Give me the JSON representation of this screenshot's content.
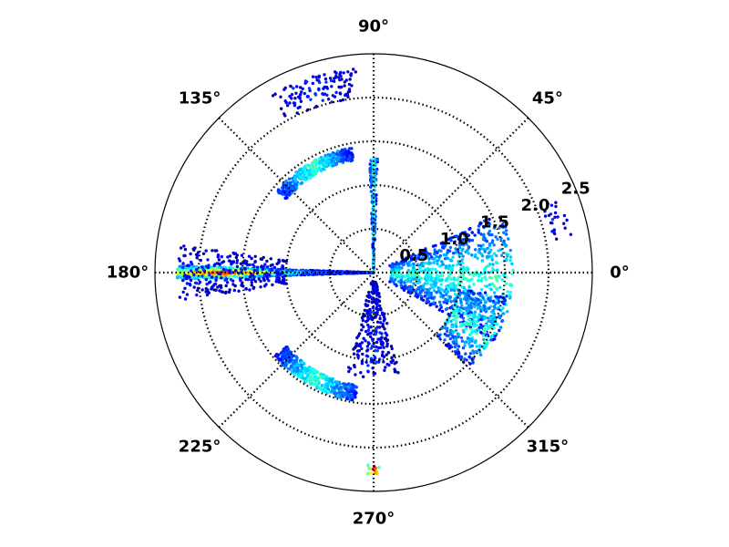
{
  "chart_data": {
    "type": "scatter",
    "projection": "polar",
    "title": "",
    "colormap": "jet (blue = low density, red = high density)",
    "theta_unit": "degrees",
    "theta_ticks": [
      0,
      45,
      90,
      135,
      180,
      225,
      270,
      315
    ],
    "theta_tick_labels": [
      "0°",
      "45°",
      "90°",
      "135°",
      "180°",
      "225°",
      "270°",
      "315°"
    ],
    "r_ticks": [
      0.5,
      1.0,
      1.5,
      2.0,
      2.5
    ],
    "r_tick_labels": [
      "0.5",
      "1.0",
      "1.5",
      "2.0",
      "2.5"
    ],
    "r_label_angle_deg": 22.5,
    "rlim": [
      0,
      2.5
    ],
    "grid": true,
    "grid_style": "dotted",
    "clusters": [
      {
        "theta_range": [
          178,
          182
        ],
        "r_range": [
          0.0,
          2.25
        ],
        "count": 1300,
        "density_peak": "high",
        "peak_r": 1.7
      },
      {
        "theta_range": [
          172,
          188
        ],
        "r_range": [
          1.0,
          2.25
        ],
        "count": 260,
        "density_peak": "low"
      },
      {
        "theta_range": [
          100,
          140
        ],
        "r_range": [
          1.3,
          1.45
        ],
        "count": 380,
        "density_peak": "medium"
      },
      {
        "theta_range": [
          220,
          262
        ],
        "r_range": [
          1.3,
          1.48
        ],
        "count": 420,
        "density_peak": "medium"
      },
      {
        "theta_range": [
          95,
          120
        ],
        "r_range": [
          2.0,
          2.35
        ],
        "count": 120,
        "density_peak": "low"
      },
      {
        "theta_range": [
          -30,
          25
        ],
        "r_range": [
          0.2,
          1.6
        ],
        "count": 900,
        "density_peak": "medium"
      },
      {
        "theta_range": [
          -45,
          -10
        ],
        "r_range": [
          1.0,
          1.55
        ],
        "count": 300,
        "density_peak": "medium"
      },
      {
        "theta_range": [
          255,
          285
        ],
        "r_range": [
          0.1,
          1.2
        ],
        "count": 250,
        "density_peak": "low"
      },
      {
        "theta_range": [
          88,
          92
        ],
        "r_range": [
          0.0,
          1.3
        ],
        "count": 200,
        "density_peak": "medium"
      },
      {
        "theta_range": [
          268,
          272
        ],
        "r_range": [
          2.2,
          2.3
        ],
        "count": 15,
        "density_peak": "high"
      },
      {
        "theta_range": [
          10,
          22
        ],
        "r_range": [
          2.05,
          2.3
        ],
        "count": 25,
        "density_peak": "low"
      }
    ]
  }
}
